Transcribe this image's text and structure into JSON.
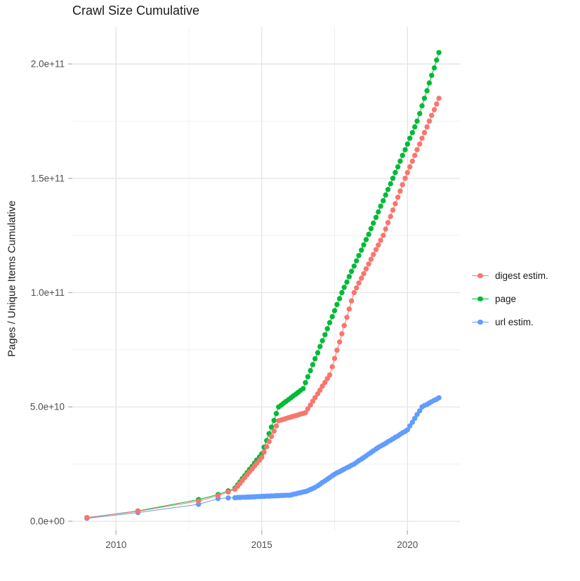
{
  "title": "Crawl Size Cumulative",
  "ylabel": "Pages / Unique Items Cumulative",
  "colors": {
    "grid_major": "#e4e4e4",
    "grid_minor": "#f1f1f1",
    "tick": "#bdbdbd",
    "axis_text": "#4f4f4f",
    "text": "#1b1b1b"
  },
  "chart_data": {
    "type": "scatter",
    "title": "Crawl Size Cumulative",
    "xlabel": "",
    "ylabel": "Pages / Unique Items Cumulative",
    "legend_position": "right",
    "grid": true,
    "xlim": [
      2008.5,
      2021.8
    ],
    "ylim": [
      -4000000000.0,
      216300000000.0
    ],
    "x_ticks": [
      {
        "value": 2010,
        "label": "2010"
      },
      {
        "value": 2015,
        "label": "2015"
      },
      {
        "value": 2020,
        "label": "2020"
      }
    ],
    "x_minor_ticks": [
      2012.5,
      2017.5
    ],
    "y_ticks": [
      {
        "value": 0,
        "label": "0.0e+00"
      },
      {
        "value": 50000000000.0,
        "label": "5.0e+10"
      },
      {
        "value": 100000000000.0,
        "label": "1.0e+11"
      },
      {
        "value": 150000000000.0,
        "label": "1.5e+11"
      },
      {
        "value": 200000000000.0,
        "label": "2.0e+11"
      }
    ],
    "y_minor_ticks": [
      25000000000.0,
      75000000000.0,
      125000000000.0,
      175000000000.0
    ],
    "y_unit": 100000000.0,
    "x": [
      2009.0,
      2010.75,
      2012.83,
      2013.5,
      2013.85,
      2014.08,
      2014.17,
      2014.25,
      2014.33,
      2014.42,
      2014.5,
      2014.58,
      2014.67,
      2014.75,
      2014.83,
      2014.92,
      2015.0,
      2015.08,
      2015.17,
      2015.25,
      2015.33,
      2015.42,
      2015.5,
      2015.58,
      2015.67,
      2015.75,
      2015.83,
      2015.92,
      2016.0,
      2016.08,
      2016.17,
      2016.25,
      2016.33,
      2016.42,
      2016.5,
      2016.58,
      2016.67,
      2016.75,
      2016.83,
      2016.92,
      2017.0,
      2017.08,
      2017.17,
      2017.25,
      2017.33,
      2017.42,
      2017.5,
      2017.58,
      2017.67,
      2017.75,
      2017.83,
      2017.92,
      2018.0,
      2018.08,
      2018.17,
      2018.25,
      2018.33,
      2018.42,
      2018.5,
      2018.58,
      2018.67,
      2018.75,
      2018.83,
      2018.92,
      2019.0,
      2019.08,
      2019.17,
      2019.25,
      2019.33,
      2019.42,
      2019.5,
      2019.58,
      2019.67,
      2019.75,
      2019.83,
      2019.92,
      2020.0,
      2020.08,
      2020.17,
      2020.25,
      2020.33,
      2020.42,
      2020.5,
      2020.58,
      2020.67,
      2020.75,
      2020.83,
      2020.92,
      2021.0,
      2021.08
    ],
    "series": [
      {
        "name": "digest estim.",
        "color": "#F8766D",
        "values": [
          16,
          44,
          88,
          112,
          128,
          140,
          153,
          165,
          178,
          191,
          204,
          216,
          229,
          242,
          254,
          267,
          280,
          303,
          326,
          349,
          371,
          394,
          417,
          440,
          443,
          446,
          449,
          453,
          456,
          459,
          462,
          465,
          469,
          472,
          475,
          492,
          508,
          525,
          541,
          558,
          574,
          591,
          607,
          624,
          640,
          676,
          712,
          748,
          784,
          820,
          856,
          892,
          928,
          964,
          1000,
          1021,
          1042,
          1063,
          1083,
          1104,
          1125,
          1146,
          1167,
          1188,
          1208,
          1229,
          1250,
          1278,
          1306,
          1333,
          1361,
          1389,
          1417,
          1444,
          1472,
          1500,
          1525,
          1550,
          1575,
          1600,
          1625,
          1650,
          1675,
          1700,
          1725,
          1750,
          1775,
          1800,
          1825,
          1850
        ]
      },
      {
        "name": "page",
        "color": "#00BA38",
        "values": [
          16,
          45,
          95,
          117,
          133,
          145,
          159,
          172,
          186,
          200,
          213,
          227,
          240,
          254,
          268,
          281,
          295,
          324,
          353,
          383,
          412,
          441,
          471,
          500,
          508,
          516,
          524,
          532,
          540,
          548,
          556,
          564,
          572,
          580,
          606,
          632,
          659,
          685,
          711,
          737,
          764,
          790,
          816,
          842,
          869,
          895,
          921,
          948,
          974,
          1000,
          1023,
          1046,
          1070,
          1093,
          1116,
          1139,
          1162,
          1186,
          1209,
          1232,
          1255,
          1280,
          1304,
          1329,
          1353,
          1378,
          1402,
          1427,
          1451,
          1476,
          1500,
          1525,
          1550,
          1575,
          1600,
          1625,
          1650,
          1675,
          1700,
          1725,
          1750,
          1783,
          1817,
          1850,
          1883,
          1917,
          1950,
          1983,
          2017,
          2050
        ]
      },
      {
        "name": "url estim.",
        "color": "#619CFF",
        "values": [
          13,
          38,
          74,
          99,
          102,
          103,
          104,
          104,
          105,
          105,
          106,
          106,
          107,
          107,
          108,
          108,
          109,
          109,
          110,
          110,
          111,
          111,
          112,
          112,
          113,
          113,
          114,
          114,
          115,
          118,
          120,
          123,
          125,
          128,
          130,
          134,
          139,
          143,
          148,
          155,
          162,
          170,
          177,
          184,
          191,
          199,
          206,
          212,
          217,
          223,
          228,
          234,
          239,
          245,
          250,
          257,
          265,
          272,
          279,
          286,
          294,
          301,
          308,
          316,
          323,
          329,
          335,
          341,
          348,
          354,
          360,
          367,
          373,
          380,
          387,
          393,
          400,
          417,
          433,
          450,
          467,
          483,
          500,
          506,
          511,
          517,
          523,
          529,
          534,
          540
        ]
      }
    ],
    "draw_order": [
      2,
      1,
      0
    ]
  }
}
